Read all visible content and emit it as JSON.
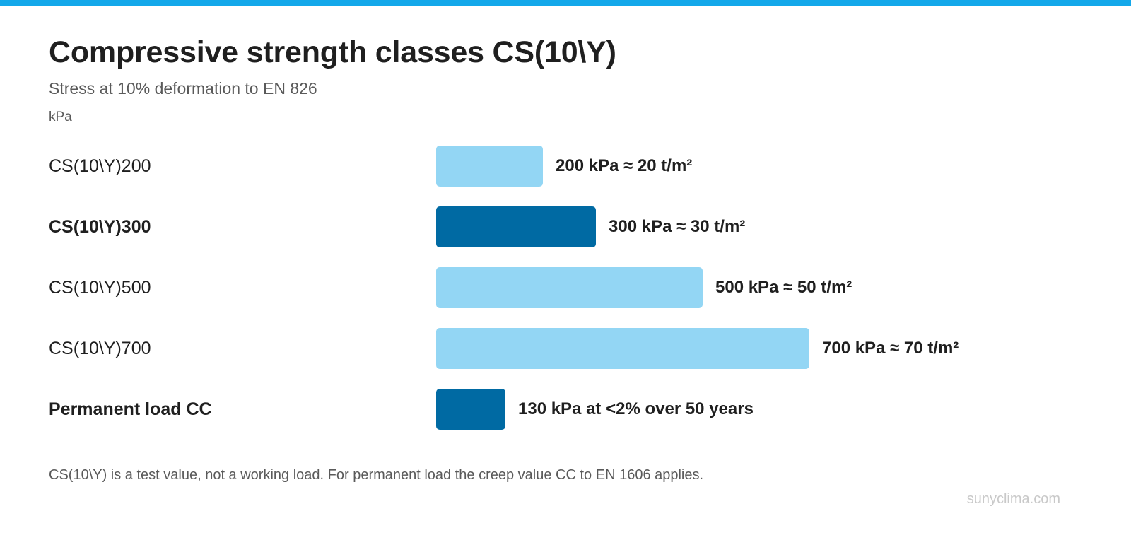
{
  "header": {
    "title": "Compressive strength classes CS(10\\Y)",
    "subtitle": "Stress at 10% deformation to EN 826",
    "unit": "kPa"
  },
  "colors": {
    "accent": "#14a8ea",
    "light_bar": "#93d6f4",
    "dark_bar": "#006aa3"
  },
  "chart_data": {
    "type": "bar",
    "orientation": "horizontal",
    "title": "Compressive strength classes CS(10\\Y)",
    "subtitle": "Stress at 10% deformation to EN 826",
    "xlabel": "kPa",
    "ylabel": "",
    "xlim": [
      0,
      700
    ],
    "grid": false,
    "categories": [
      "CS(10\\Y)200",
      "CS(10\\Y)300",
      "CS(10\\Y)500",
      "CS(10\\Y)700",
      "Permanent load CC"
    ],
    "values": [
      200,
      300,
      500,
      700,
      130
    ],
    "value_labels": [
      "200 kPa ≈ 20 t/m²",
      "300 kPa ≈ 30 t/m²",
      "500 kPa ≈ 50 t/m²",
      "700 kPa ≈ 70 t/m²",
      "130 kPa at <2% over 50 years"
    ],
    "highlighted": [
      false,
      true,
      false,
      false,
      true
    ]
  },
  "footer": {
    "note": "CS(10\\Y) is a test value, not a working load. For permanent load the creep value CC to EN 1606 applies.",
    "credit": "sunyclima.com"
  }
}
